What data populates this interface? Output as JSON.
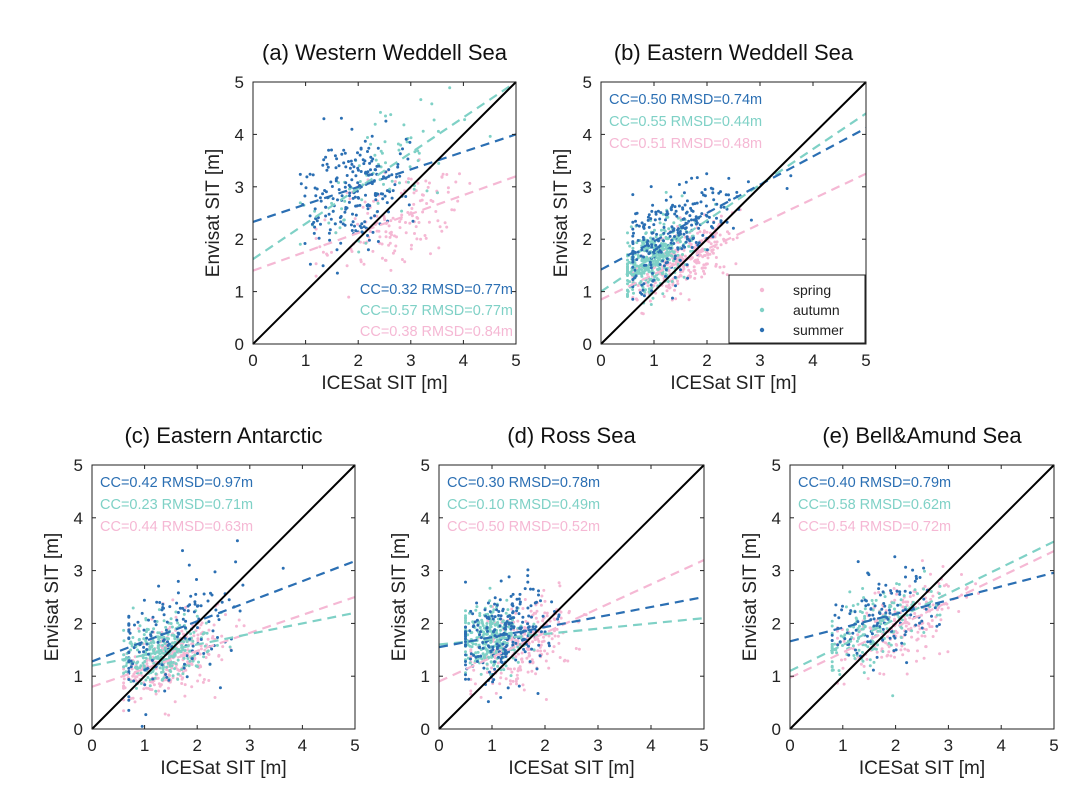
{
  "colors": {
    "spring": "#f5b8d4",
    "autumn": "#7fd1c6",
    "summer": "#2b6fb3",
    "identity": "#000000"
  },
  "legend": {
    "placement": "lower-right",
    "panel": "b",
    "items": [
      {
        "key": "spring",
        "label": "spring"
      },
      {
        "key": "autumn",
        "label": "autumn"
      },
      {
        "key": "summer",
        "label": "summer"
      }
    ]
  },
  "chart_data": [
    {
      "id": "a",
      "type": "scatter",
      "title": "(a) Western Weddell Sea",
      "xlabel": "ICESat SIT [m]",
      "ylabel": "Envisat SIT [m]",
      "xlim": [
        0,
        5
      ],
      "ylim": [
        0,
        5
      ],
      "ticks": [
        0,
        1,
        2,
        3,
        4,
        5
      ],
      "stats_placement": "lower-right",
      "series": [
        {
          "season": "summer",
          "stats": "CC=0.32 RMSD=0.77m",
          "fit": {
            "intercept": 2.33,
            "slope": 0.334
          },
          "cloud": {
            "n": 220,
            "xmean": 1.9,
            "xsd": 0.5,
            "resid_sd": 0.55,
            "xmin": 0.9,
            "xmax": 3.4
          }
        },
        {
          "season": "autumn",
          "stats": "CC=0.57 RMSD=0.77m",
          "fit": {
            "intercept": 1.62,
            "slope": 0.676
          },
          "cloud": {
            "n": 80,
            "xmean": 2.4,
            "xsd": 0.8,
            "resid_sd": 0.6,
            "xmin": 0.9,
            "xmax": 4.8
          }
        },
        {
          "season": "spring",
          "stats": "CC=0.38 RMSD=0.84m",
          "fit": {
            "intercept": 1.4,
            "slope": 0.36
          },
          "cloud": {
            "n": 150,
            "xmean": 2.7,
            "xsd": 0.7,
            "resid_sd": 0.45,
            "xmin": 1.2,
            "xmax": 4.8
          }
        }
      ]
    },
    {
      "id": "b",
      "type": "scatter",
      "title": "(b) Eastern Weddell Sea",
      "xlabel": "ICESat SIT [m]",
      "ylabel": "Envisat SIT [m]",
      "xlim": [
        0,
        5
      ],
      "ylim": [
        0,
        5
      ],
      "ticks": [
        0,
        1,
        2,
        3,
        4,
        5
      ],
      "stats_placement": "upper-left",
      "series": [
        {
          "season": "summer",
          "stats": "CC=0.50 RMSD=0.74m",
          "fit": {
            "intercept": 1.42,
            "slope": 0.54
          },
          "cloud": {
            "n": 260,
            "xmean": 1.4,
            "xsd": 0.55,
            "resid_sd": 0.45,
            "xmin": 0.6,
            "xmax": 3.6
          }
        },
        {
          "season": "autumn",
          "stats": "CC=0.55 RMSD=0.44m",
          "fit": {
            "intercept": 1.0,
            "slope": 0.68
          },
          "cloud": {
            "n": 380,
            "xmean": 1.0,
            "xsd": 0.35,
            "resid_sd": 0.3,
            "xmin": 0.5,
            "xmax": 2.6
          }
        },
        {
          "season": "spring",
          "stats": "CC=0.51 RMSD=0.48m",
          "fit": {
            "intercept": 0.85,
            "slope": 0.48
          },
          "cloud": {
            "n": 320,
            "xmean": 1.5,
            "xsd": 0.45,
            "resid_sd": 0.3,
            "xmin": 0.6,
            "xmax": 3.0
          }
        }
      ]
    },
    {
      "id": "c",
      "type": "scatter",
      "title": "(c) Eastern Antarctic",
      "xlabel": "ICESat SIT [m]",
      "ylabel": "Envisat SIT [m]",
      "xlim": [
        0,
        5
      ],
      "ylim": [
        0,
        5
      ],
      "ticks": [
        0,
        1,
        2,
        3,
        4,
        5
      ],
      "stats_placement": "upper-left",
      "series": [
        {
          "season": "summer",
          "stats": "CC=0.42 RMSD=0.97m",
          "fit": {
            "intercept": 1.28,
            "slope": 0.38
          },
          "cloud": {
            "n": 160,
            "xmean": 1.5,
            "xsd": 0.7,
            "resid_sd": 0.5,
            "xmin": 0.7,
            "xmax": 4.6
          }
        },
        {
          "season": "autumn",
          "stats": "CC=0.23 RMSD=0.71m",
          "fit": {
            "intercept": 1.2,
            "slope": 0.2
          },
          "cloud": {
            "n": 300,
            "xmean": 1.3,
            "xsd": 0.4,
            "resid_sd": 0.3,
            "xmin": 0.6,
            "xmax": 3.0
          }
        },
        {
          "season": "spring",
          "stats": "CC=0.44 RMSD=0.63m",
          "fit": {
            "intercept": 0.8,
            "slope": 0.34
          },
          "cloud": {
            "n": 300,
            "xmean": 1.5,
            "xsd": 0.5,
            "resid_sd": 0.35,
            "xmin": 0.6,
            "xmax": 3.2
          }
        }
      ]
    },
    {
      "id": "d",
      "type": "scatter",
      "title": "(d) Ross Sea",
      "xlabel": "ICESat SIT [m]",
      "ylabel": "Envisat SIT [m]",
      "xlim": [
        0,
        5
      ],
      "ylim": [
        0,
        5
      ],
      "ticks": [
        0,
        1,
        2,
        3,
        4,
        5
      ],
      "stats_placement": "upper-left",
      "series": [
        {
          "season": "summer",
          "stats": "CC=0.30 RMSD=0.78m",
          "fit": {
            "intercept": 1.55,
            "slope": 0.19
          },
          "cloud": {
            "n": 240,
            "xmean": 1.2,
            "xsd": 0.45,
            "resid_sd": 0.45,
            "xmin": 0.5,
            "xmax": 4.0
          }
        },
        {
          "season": "autumn",
          "stats": "CC=0.10 RMSD=0.49m",
          "fit": {
            "intercept": 1.6,
            "slope": 0.1
          },
          "cloud": {
            "n": 300,
            "xmean": 1.0,
            "xsd": 0.3,
            "resid_sd": 0.3,
            "xmin": 0.5,
            "xmax": 2.2
          }
        },
        {
          "season": "spring",
          "stats": "CC=0.50 RMSD=0.52m",
          "fit": {
            "intercept": 0.9,
            "slope": 0.46
          },
          "cloud": {
            "n": 260,
            "xmean": 1.6,
            "xsd": 0.5,
            "resid_sd": 0.35,
            "xmin": 0.6,
            "xmax": 3.5
          }
        }
      ]
    },
    {
      "id": "e",
      "type": "scatter",
      "title": "(e) Bell&Amund Sea",
      "xlabel": "ICESat SIT [m]",
      "ylabel": "Envisat SIT [m]",
      "xlim": [
        0,
        5
      ],
      "ylim": [
        0,
        5
      ],
      "ticks": [
        0,
        1,
        2,
        3,
        4,
        5
      ],
      "stats_placement": "upper-left",
      "series": [
        {
          "season": "summer",
          "stats": "CC=0.40 RMSD=0.79m",
          "fit": {
            "intercept": 1.66,
            "slope": 0.26
          },
          "cloud": {
            "n": 120,
            "xmean": 1.7,
            "xsd": 0.5,
            "resid_sd": 0.45,
            "xmin": 0.8,
            "xmax": 3.8
          }
        },
        {
          "season": "autumn",
          "stats": "CC=0.58 RMSD=0.62m",
          "fit": {
            "intercept": 1.1,
            "slope": 0.49
          },
          "cloud": {
            "n": 180,
            "xmean": 1.6,
            "xsd": 0.5,
            "resid_sd": 0.35,
            "xmin": 0.8,
            "xmax": 3.4
          }
        },
        {
          "season": "spring",
          "stats": "CC=0.54 RMSD=0.72m",
          "fit": {
            "intercept": 0.97,
            "slope": 0.48
          },
          "cloud": {
            "n": 220,
            "xmean": 2.1,
            "xsd": 0.6,
            "resid_sd": 0.4,
            "xmin": 0.9,
            "xmax": 4.6
          }
        }
      ]
    }
  ]
}
